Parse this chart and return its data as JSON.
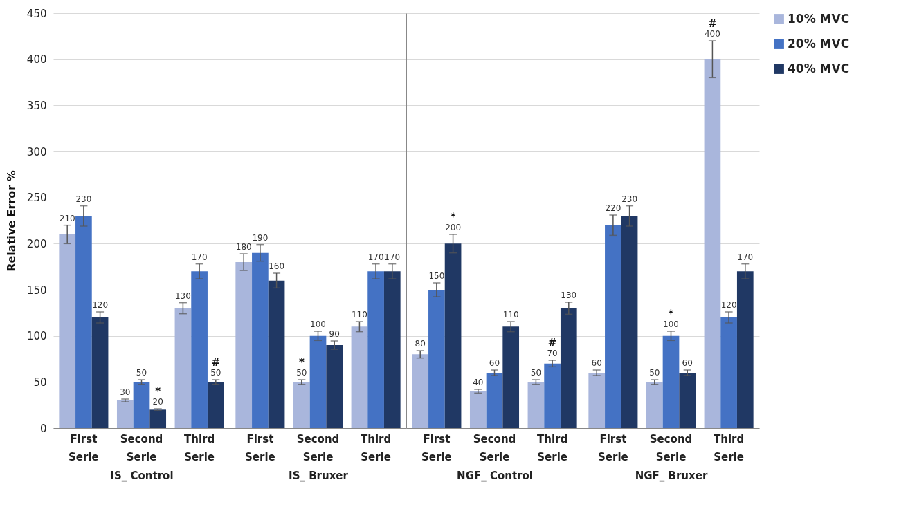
{
  "chart_data": [
    {
      "type": "bar",
      "xlabel": "IS_ Control",
      "ylabel": "Relative Error %",
      "categories": [
        "First Serie",
        "Second Serie",
        "Third Serie"
      ],
      "series": [
        {
          "color": "#a9b6dc",
          "values": [
            210,
            30,
            130
          ],
          "errors": [
            10,
            1.5,
            6
          ],
          "value_labels": [
            "210",
            "30",
            "130"
          ]
        },
        {
          "color": "#4472c4",
          "values": [
            230,
            50,
            170
          ],
          "errors": [
            11,
            2.5,
            8
          ],
          "value_labels": [
            "230",
            "50",
            "170"
          ]
        },
        {
          "color": "#203864",
          "values": [
            120,
            20,
            50
          ],
          "errors": [
            6,
            1,
            2.5
          ],
          "value_labels": [
            "120",
            "*\n20",
            "#\n50"
          ]
        }
      ],
      "ylim": [
        0,
        450
      ],
      "yticks": [
        0,
        50,
        100,
        150,
        200,
        250,
        300,
        350,
        400,
        450
      ],
      "grid": "y"
    },
    {
      "type": "bar",
      "xlabel": "IS_ Bruxer",
      "categories": [
        "First Serie",
        "Second Serie",
        "Third Serie"
      ],
      "series": [
        {
          "color": "#a9b6dc",
          "values": [
            180,
            50,
            110
          ],
          "errors": [
            9,
            2.5,
            5.5
          ],
          "value_labels": [
            "180",
            "*\n50",
            "110"
          ]
        },
        {
          "color": "#4472c4",
          "values": [
            190,
            100,
            170
          ],
          "errors": [
            9,
            5,
            8
          ],
          "value_labels": [
            "190",
            "100",
            "170"
          ]
        },
        {
          "color": "#203864",
          "values": [
            160,
            90,
            170
          ],
          "errors": [
            8,
            4.5,
            8
          ],
          "value_labels": [
            "160",
            "90",
            "170"
          ]
        }
      ],
      "ylim": [
        0,
        450
      ],
      "yticks": [
        0,
        50,
        100,
        150,
        200,
        250,
        300,
        350,
        400,
        450
      ],
      "grid": "y",
      "tick_labels": "x"
    },
    {
      "type": "bar",
      "xlabel": "NGF_ Control",
      "categories": [
        "First Serie",
        "Second Serie",
        "Third Serie"
      ],
      "series": [
        {
          "color": "#a9b6dc",
          "values": [
            80,
            40,
            50
          ],
          "errors": [
            4,
            2,
            2.5
          ],
          "value_labels": [
            "80",
            "40",
            "50"
          ]
        },
        {
          "color": "#4472c4",
          "values": [
            150,
            60,
            70
          ],
          "errors": [
            7.5,
            3,
            3.5
          ],
          "value_labels": [
            "150",
            "60",
            "#\n70"
          ]
        },
        {
          "color": "#203864",
          "values": [
            200,
            110,
            130
          ],
          "errors": [
            10,
            5.5,
            6.5
          ],
          "value_labels": [
            "*\n200",
            "110",
            "130"
          ]
        }
      ],
      "ylim": [
        0,
        450
      ],
      "yticks": [
        0,
        50,
        100,
        150,
        200,
        250,
        300,
        350,
        400,
        450
      ],
      "grid": "y",
      "tick_labels": "x"
    },
    {
      "type": "bar",
      "xlabel": "NGF_ Bruxer",
      "categories": [
        "First Serie",
        "Second Serie",
        "Third Serie"
      ],
      "series": [
        {
          "name": "10% MVC",
          "color": "#a9b6dc",
          "values": [
            60,
            50,
            400
          ],
          "errors": [
            3,
            2.5,
            20
          ],
          "value_labels": [
            "60",
            "50",
            "#\n400"
          ]
        },
        {
          "name": "20% MVC",
          "color": "#4472c4",
          "values": [
            220,
            100,
            120
          ],
          "errors": [
            11,
            5,
            6
          ],
          "value_labels": [
            "220",
            "*\n100",
            "120"
          ]
        },
        {
          "name": "40% MVC",
          "color": "#203864",
          "values": [
            230,
            60,
            170
          ],
          "errors": [
            11,
            3,
            8
          ],
          "value_labels": [
            "230",
            "60",
            "170"
          ]
        }
      ],
      "ylim": [
        0,
        450
      ],
      "yticks": [
        0,
        50,
        100,
        150,
        200,
        250,
        300,
        350,
        400,
        450
      ],
      "grid": "y",
      "tick_labels": "x",
      "legend": "right"
    }
  ]
}
